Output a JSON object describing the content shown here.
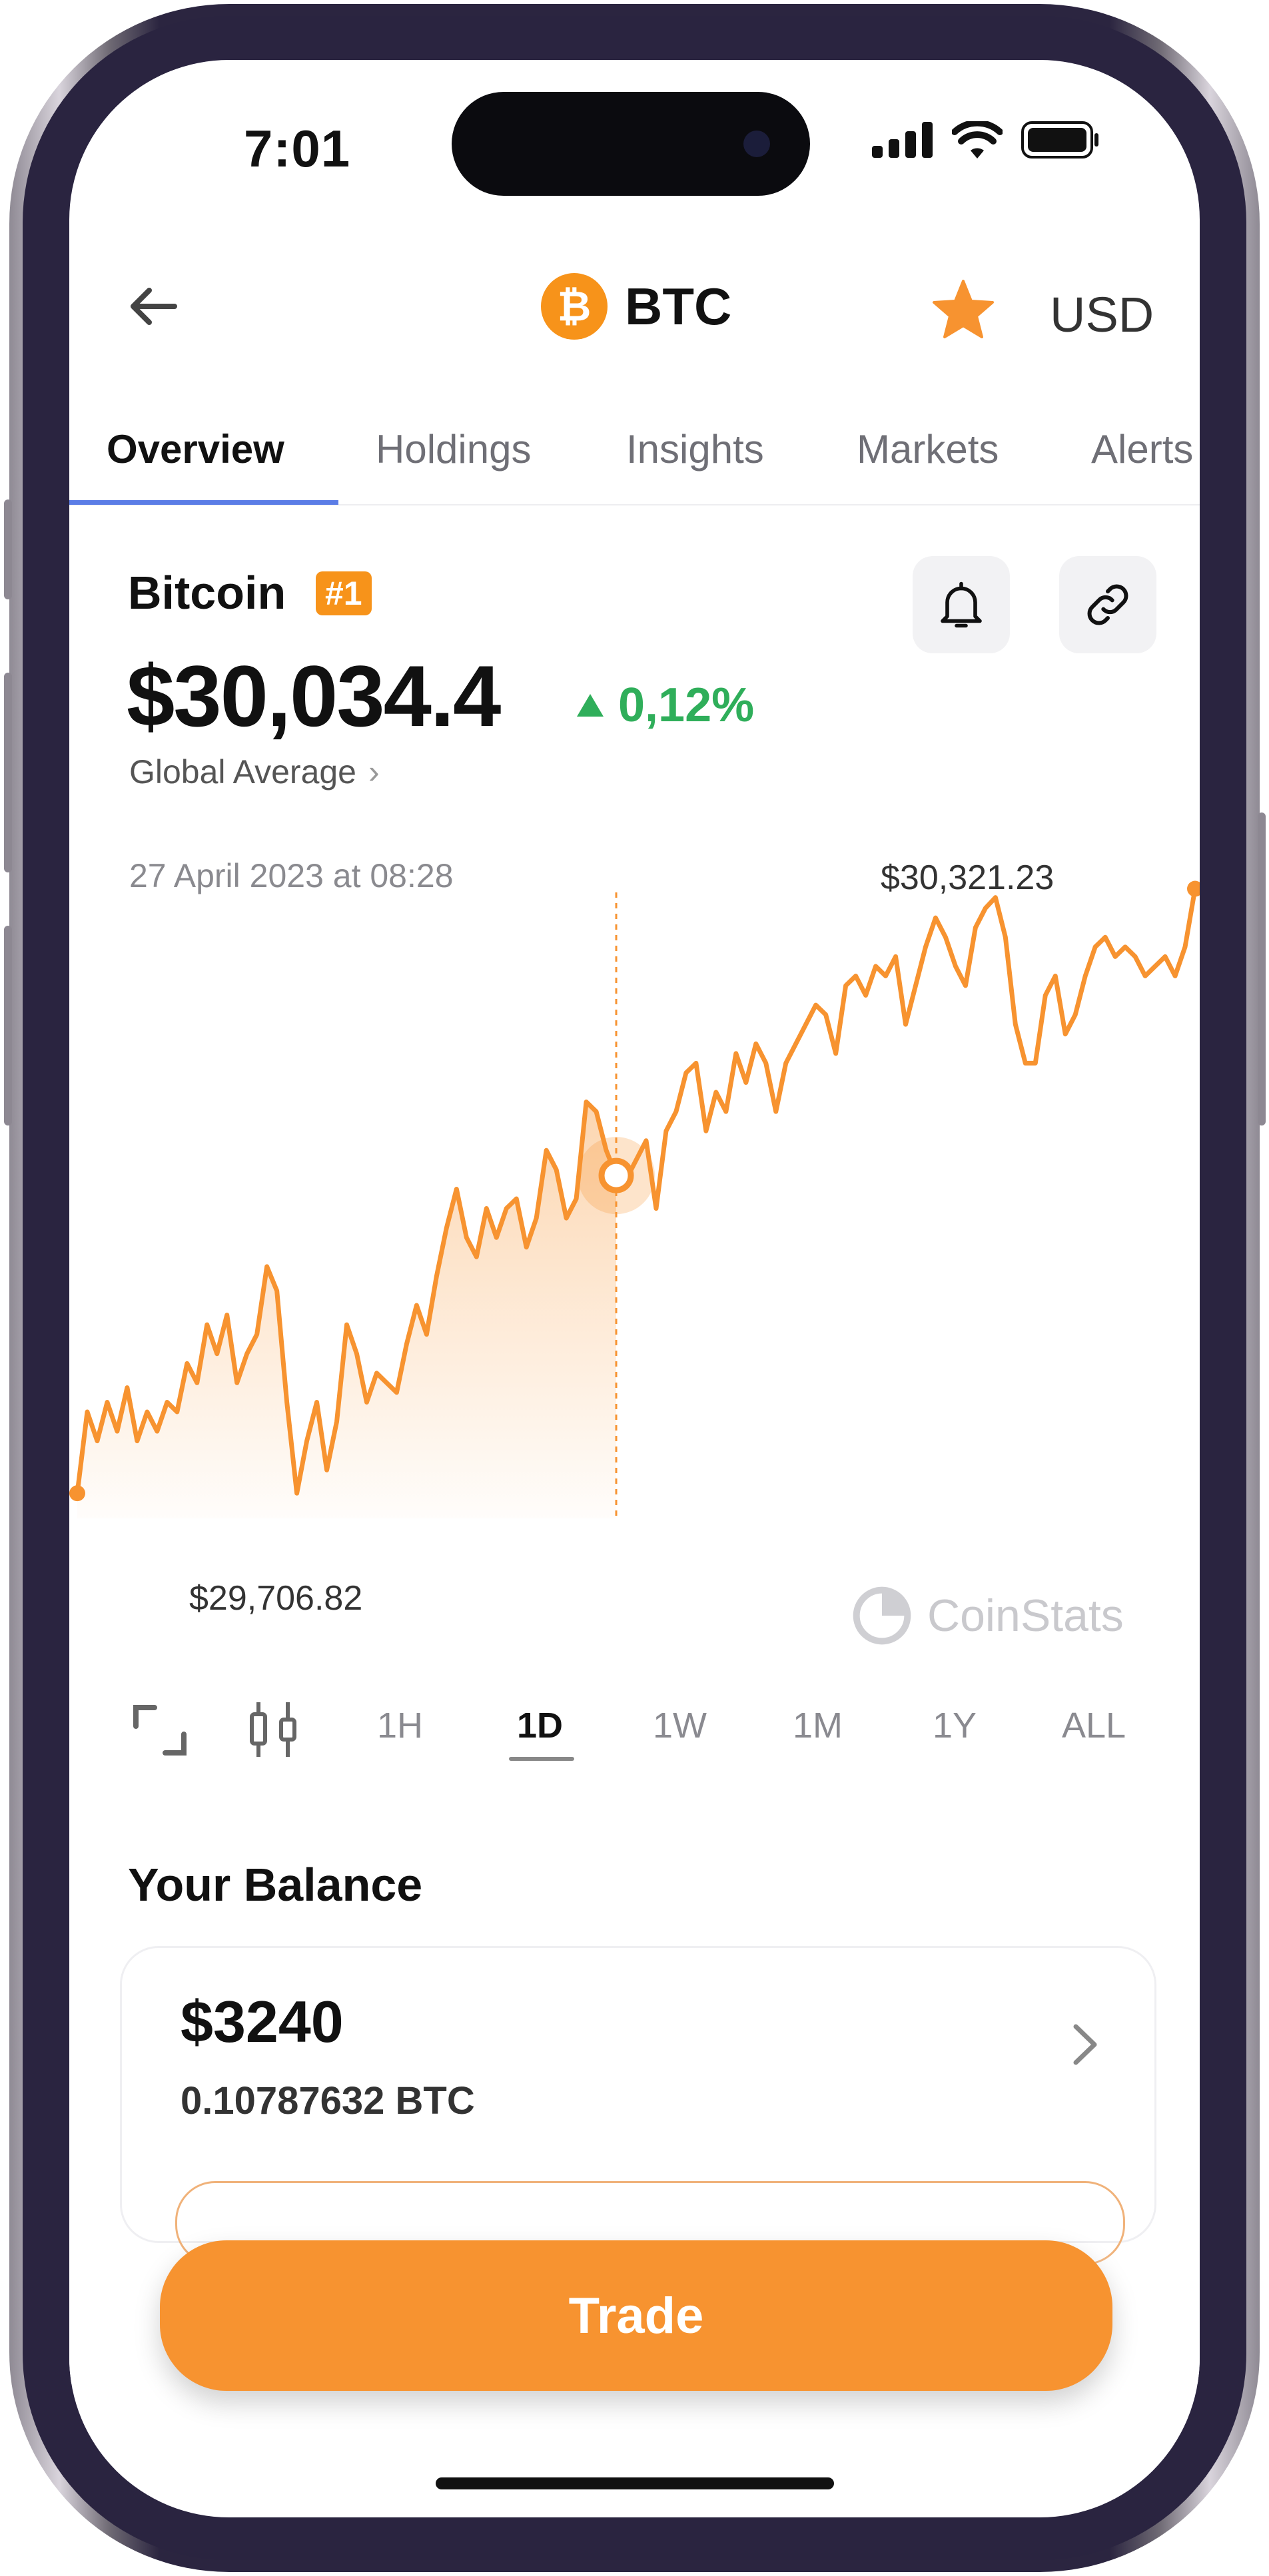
{
  "status_bar": {
    "time": "7:01"
  },
  "header": {
    "back_icon": "arrow-left-icon",
    "coin_symbol": "BTC",
    "coin_logo_glyph": "₿",
    "favorite_icon": "star-icon",
    "currency": "USD"
  },
  "tabs": [
    {
      "label": "Overview",
      "active": true
    },
    {
      "label": "Holdings",
      "active": false
    },
    {
      "label": "Insights",
      "active": false
    },
    {
      "label": "Markets",
      "active": false
    },
    {
      "label": "Alerts",
      "active": false
    }
  ],
  "coin": {
    "name": "Bitcoin",
    "rank": "#1",
    "price": "$30,034.4",
    "change": "0,12%",
    "source": "Global Average"
  },
  "chart_data": {
    "type": "line",
    "title": "",
    "xlabel": "",
    "ylabel": "",
    "selected_time": "27 April 2023 at 08:28",
    "max_label": "$30,321.23",
    "min_label": "$29,706.82",
    "ylim": [
      29680,
      30340
    ],
    "values": [
      29706,
      29790,
      29760,
      29800,
      29770,
      29815,
      29760,
      29790,
      29770,
      29800,
      29790,
      29840,
      29820,
      29880,
      29850,
      29890,
      29820,
      29850,
      29870,
      29940,
      29915,
      29800,
      29706,
      29760,
      29800,
      29730,
      29780,
      29880,
      29850,
      29800,
      29830,
      29820,
      29810,
      29860,
      29900,
      29870,
      29930,
      29980,
      30020,
      29970,
      29950,
      30000,
      29970,
      30000,
      30010,
      29960,
      29990,
      30060,
      30040,
      29990,
      30010,
      30110,
      30100,
      30060,
      30034,
      30030,
      30050,
      30070,
      30000,
      30080,
      30100,
      30140,
      30150,
      30080,
      30120,
      30100,
      30160,
      30130,
      30170,
      30150,
      30100,
      30150,
      30170,
      30190,
      30210,
      30200,
      30160,
      30230,
      30240,
      30220,
      30250,
      30240,
      30260,
      30190,
      30230,
      30270,
      30300,
      30280,
      30250,
      30230,
      30290,
      30310,
      30321,
      30280,
      30190,
      30150,
      30150,
      30220,
      30240,
      30180,
      30200,
      30240,
      30270,
      30280,
      30260,
      30270,
      30260,
      30240,
      30250,
      30260,
      30240,
      30270,
      30330
    ],
    "selected_index": 54,
    "line_color": "#f79330"
  },
  "watermark": "CoinStats",
  "ranges": {
    "icons": [
      "expand-icon",
      "candlestick-icon"
    ],
    "items": [
      "1H",
      "1D",
      "1W",
      "1M",
      "1Y",
      "ALL"
    ],
    "active": "1D"
  },
  "balance": {
    "title": "Your Balance",
    "usd": "$3240",
    "btc": "0.10787632 BTC"
  },
  "trade_label": "Trade",
  "colors": {
    "accent": "#f79330",
    "positive": "#2fae5a",
    "tab_indicator": "#5b7de6"
  }
}
